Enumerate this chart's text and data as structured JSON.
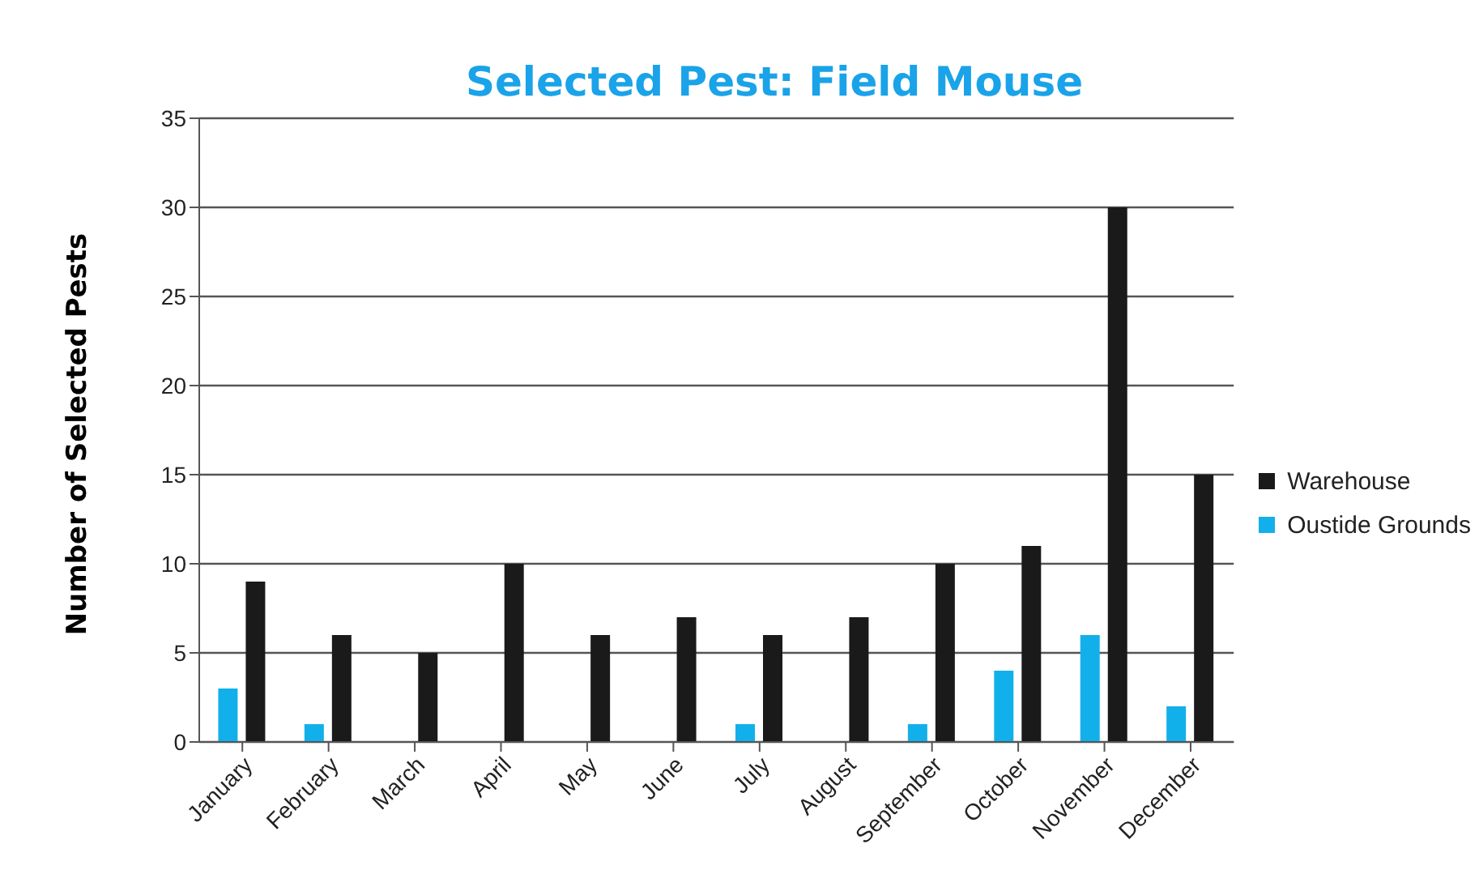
{
  "chart_data": {
    "type": "bar",
    "title": "Selected Pest: Field Mouse",
    "ylabel": "Number of Selected Pests",
    "categories": [
      "January",
      "February",
      "March",
      "April",
      "May",
      "June",
      "July",
      "August",
      "September",
      "October",
      "November",
      "December"
    ],
    "series": [
      {
        "name": "Oustide Grounds",
        "color": "#12b0ea",
        "values": [
          3,
          1,
          0,
          0,
          0,
          0,
          1,
          0,
          1,
          4,
          6,
          2
        ]
      },
      {
        "name": "Warehouse",
        "color": "#1a1a1a",
        "values": [
          9,
          6,
          5,
          10,
          6,
          7,
          6,
          7,
          10,
          11,
          30,
          15
        ]
      }
    ],
    "ylim": [
      0,
      35
    ],
    "yticks": [
      0,
      5,
      10,
      15,
      20,
      25,
      30,
      35
    ],
    "grid": "y",
    "legend": "right"
  }
}
